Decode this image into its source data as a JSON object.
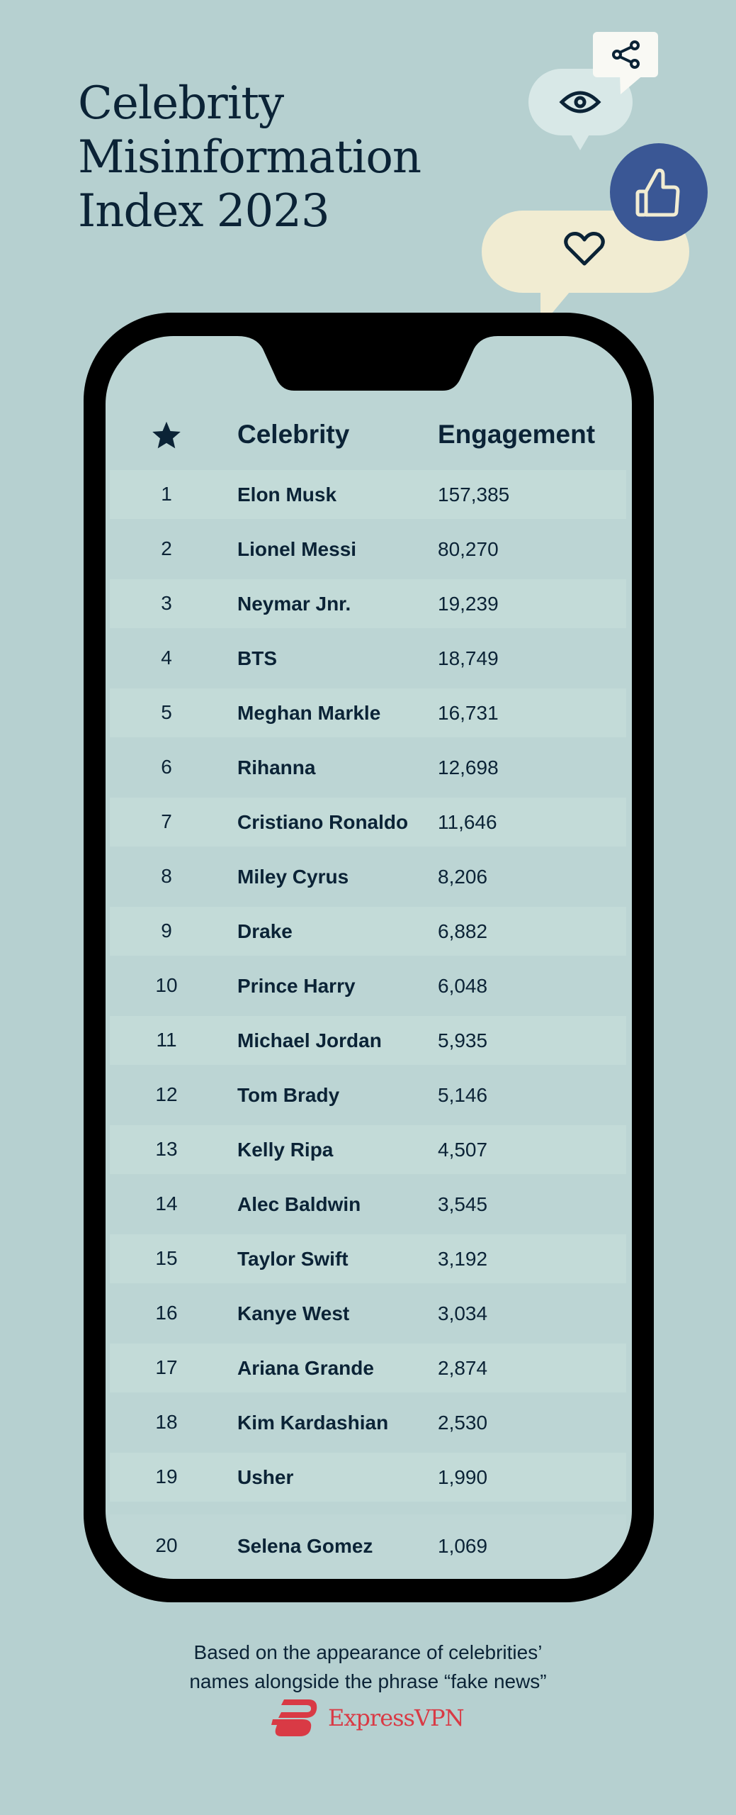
{
  "title": {
    "line1": "Celebrity",
    "line2": "Misinformation",
    "line3": "Index 2023"
  },
  "icons": {
    "share": "share-icon",
    "eye": "eye-icon",
    "thumbs_up": "thumbs-up-icon",
    "heart": "heart-icon",
    "camera": "camera-icon",
    "rank_header": "star-icon"
  },
  "colors": {
    "background": "#b6d0d0",
    "text": "#0b2336",
    "thumbs_bubble": "#3a5795",
    "heart_bubble": "#f1ecd2",
    "eye_bubble": "#d8e8e7",
    "share_bubble": "#f9f9f4",
    "brand_red": "#d93a45"
  },
  "table": {
    "headers": {
      "celebrity": "Celebrity",
      "engagement": "Engagement"
    },
    "rows": [
      {
        "rank": "1",
        "name": "Elon Musk",
        "engagement": "157,385"
      },
      {
        "rank": "2",
        "name": "Lionel Messi",
        "engagement": "80,270"
      },
      {
        "rank": "3",
        "name": "Neymar Jnr.",
        "engagement": "19,239"
      },
      {
        "rank": "4",
        "name": "BTS",
        "engagement": "18,749"
      },
      {
        "rank": "5",
        "name": "Meghan Markle",
        "engagement": "16,731"
      },
      {
        "rank": "6",
        "name": "Rihanna",
        "engagement": "12,698"
      },
      {
        "rank": "7",
        "name": "Cristiano Ronaldo",
        "engagement": "11,646"
      },
      {
        "rank": "8",
        "name": "Miley Cyrus",
        "engagement": "8,206"
      },
      {
        "rank": "9",
        "name": "Drake",
        "engagement": "6,882"
      },
      {
        "rank": "10",
        "name": "Prince Harry",
        "engagement": "6,048"
      },
      {
        "rank": "11",
        "name": "Michael Jordan",
        "engagement": "5,935"
      },
      {
        "rank": "12",
        "name": "Tom Brady",
        "engagement": "5,146"
      },
      {
        "rank": "13",
        "name": "Kelly Ripa",
        "engagement": "4,507"
      },
      {
        "rank": "14",
        "name": "Alec Baldwin",
        "engagement": "3,545"
      },
      {
        "rank": "15",
        "name": "Taylor Swift",
        "engagement": "3,192"
      },
      {
        "rank": "16",
        "name": "Kanye West",
        "engagement": "3,034"
      },
      {
        "rank": "17",
        "name": "Ariana Grande",
        "engagement": "2,874"
      },
      {
        "rank": "18",
        "name": "Kim Kardashian",
        "engagement": "2,530"
      },
      {
        "rank": "19",
        "name": "Usher",
        "engagement": "1,990"
      },
      {
        "rank": "20",
        "name": "Selena Gomez",
        "engagement": "1,069"
      }
    ]
  },
  "footer": {
    "line1": "Based on the appearance of celebrities’",
    "line2": "names alongside the phrase “fake news”"
  },
  "brand": {
    "name": "ExpressVPN"
  }
}
